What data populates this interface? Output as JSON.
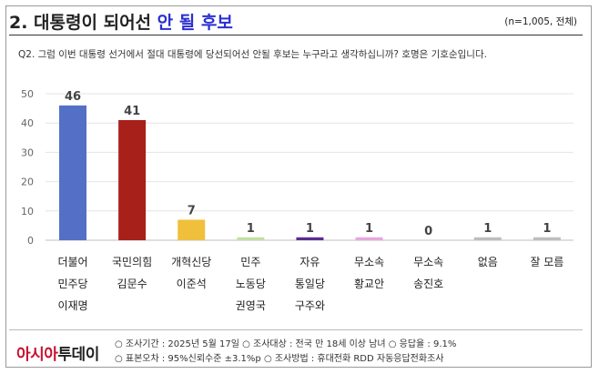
{
  "header": {
    "title_prefix": "2. 대통령이 되어선",
    "title_highlight": "안 될 후보",
    "sample_note": "(n=1,005, 전체)",
    "question": "Q2. 그럼 이번 대통령 선거에서 절대 대통령에 당선되어선 안될 후보는 누구라고 생각하십니까? 호명은 기호순입니다."
  },
  "chart_data": {
    "type": "bar",
    "categories": [
      [
        "더불어",
        "민주당",
        "이재명"
      ],
      [
        "국민의힘",
        "김문수"
      ],
      [
        "개혁신당",
        "이준석"
      ],
      [
        "민주",
        "노동당",
        "권영국"
      ],
      [
        "자유",
        "통일당",
        "구주와"
      ],
      [
        "무소속",
        "황교안"
      ],
      [
        "무소속",
        "송진호"
      ],
      [
        "없음"
      ],
      [
        "잘 모름"
      ]
    ],
    "values": [
      46,
      41,
      7,
      1,
      1,
      1,
      0,
      1,
      1
    ],
    "colors": [
      "#5470c6",
      "#a8201a",
      "#f0c03c",
      "#c4dfa0",
      "#5a2d91",
      "#e6a6e0",
      "#cccccc",
      "#bdbdbd",
      "#bdbdbd"
    ],
    "yticks": [
      0,
      10,
      20,
      30,
      40,
      50
    ],
    "ylim": [
      0,
      50
    ],
    "grid": true,
    "title": "",
    "xlabel": "",
    "ylabel": ""
  },
  "footer": {
    "logo_part1": "아시아",
    "logo_part2": "투데이",
    "line1": "○ 조사기간 : 2025년 5월 17일 ○ 조사대상 : 전국 만 18세 이상 남녀 ○ 응답율 : 9.1%",
    "line2": "○ 표본오차 : 95%신뢰수준 ±3.1%p ○ 조사방법 : 휴대전화 RDD 자동응답전화조사"
  }
}
